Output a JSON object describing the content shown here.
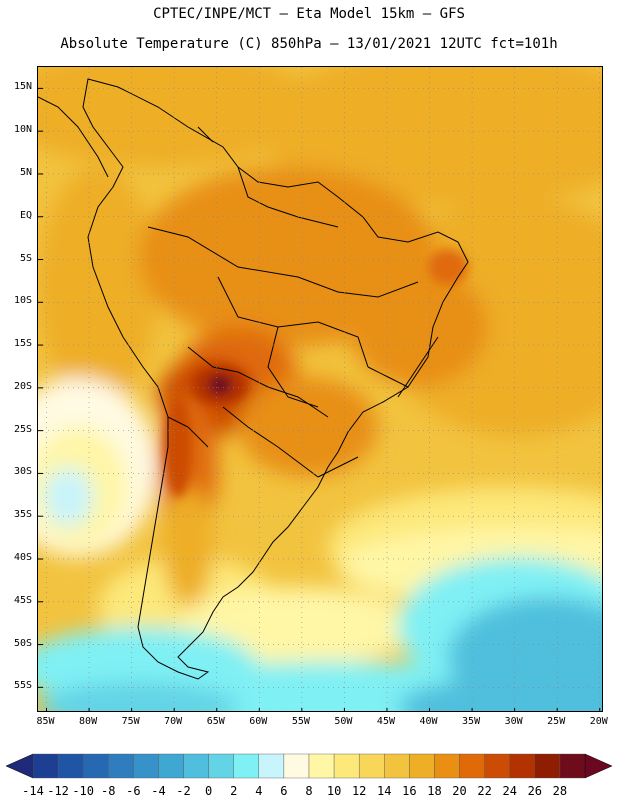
{
  "header": {
    "line1": "CPTEC/INPE/MCT –  Eta Model 15km – GFS",
    "line2": "Absolute Temperature (C) 850hPa – 13/01/2021 12UTC fct=101h"
  },
  "map": {
    "lat_labels": [
      "15N",
      "10N",
      "5N",
      "EQ",
      "5S",
      "10S",
      "15S",
      "20S",
      "25S",
      "30S",
      "35S",
      "40S",
      "45S",
      "50S",
      "55S"
    ],
    "lat_values": [
      15,
      10,
      5,
      0,
      -5,
      -10,
      -15,
      -20,
      -25,
      -30,
      -35,
      -40,
      -45,
      -50,
      -55
    ],
    "lon_labels": [
      "85W",
      "80W",
      "75W",
      "70W",
      "65W",
      "60W",
      "55W",
      "50W",
      "45W",
      "40W",
      "35W",
      "30W",
      "25W",
      "20W"
    ],
    "lon_values": [
      -85,
      -80,
      -75,
      -70,
      -65,
      -60,
      -55,
      -50,
      -45,
      -40,
      -35,
      -30,
      -25,
      -20
    ],
    "lat_range": [
      -58,
      17.5
    ],
    "lon_range": [
      -86,
      -19.5
    ]
  },
  "colorbar": {
    "labels": [
      "-14",
      "-12",
      "-10",
      "-8",
      "-6",
      "-4",
      "-2",
      "0",
      "2",
      "4",
      "6",
      "8",
      "10",
      "12",
      "14",
      "16",
      "18",
      "20",
      "22",
      "24",
      "26",
      "28"
    ],
    "colors": [
      "#1c3f94",
      "#2054a4",
      "#2768b2",
      "#2f7dbf",
      "#3692c8",
      "#3fa8d2",
      "#4fbfdd",
      "#63d4e6",
      "#7ff0f4",
      "#c8f4fb",
      "#fffae2",
      "#fff6a6",
      "#fde87a",
      "#f7d65a",
      "#f2c33f",
      "#eeae26",
      "#e88f14",
      "#e06a08",
      "#cc4b05",
      "#b33202",
      "#8e1d02",
      "#6e0c1c"
    ],
    "left_arrow_color": "#1f2a7a",
    "right_arrow_color": "#6b0720"
  }
}
